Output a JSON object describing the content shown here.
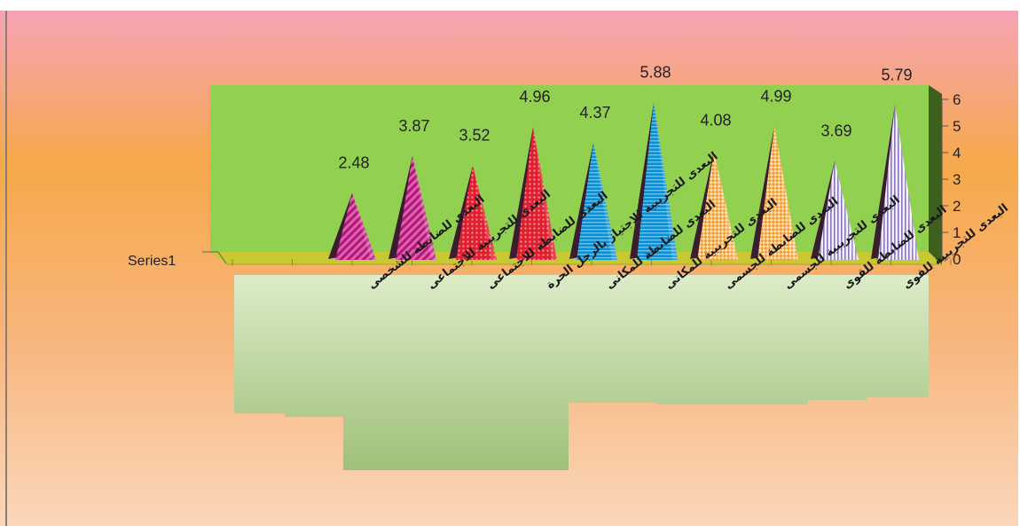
{
  "chart_data": {
    "type": "bar",
    "shape": "pyramid-3d",
    "categories": [
      "البعدى للضابطة للشخصى",
      "البعدى للتجريبية للاجتماعى",
      "البعدى للضابطة للاجتماعى",
      "البعدى للتجريبية للاجتياز بالرجل الحرة",
      "البعدى للضابطة للمكانى",
      "البعدى للتجريبية للمكانى",
      "البعدى للضابطة للجسمى",
      "البعدى للتجريبية للجسمى",
      "البعدى للضابطة للقوى",
      "البعدى للتجريبية للقوى"
    ],
    "series": [
      {
        "name": "Series1",
        "values": [
          2.48,
          3.87,
          3.52,
          4.96,
          4.37,
          5.88,
          4.08,
          4.99,
          3.69,
          5.79
        ]
      }
    ],
    "data_labels": [
      "2.48",
      "3.87",
      "3.52",
      "4.96",
      "4.37",
      "5.88",
      "4.08",
      "4.99",
      "3.69",
      "5.79"
    ],
    "yticks": [
      "0",
      "1",
      "2",
      "3",
      "4",
      "5",
      "6"
    ],
    "ylim": [
      0,
      6
    ],
    "grid": false,
    "legend": "none",
    "colors": {
      "wall": "#92d050",
      "wall_side": "#3f5f1f",
      "floor": "#c8c832",
      "label_panel": "#c3dcaa",
      "bg_top": "#f7a3b6",
      "bg_mid": "#f6a94a",
      "bg_bottom": "#fbd4b6",
      "magenta": "#c0288a",
      "red": "#e8283c",
      "blue": "#1aa0e0",
      "orange": "#f4a040",
      "lavender": "#b8a8d8"
    },
    "pyramid_colors": [
      "magenta",
      "magenta",
      "red",
      "red",
      "blue",
      "blue",
      "orange",
      "orange",
      "lavender",
      "lavender"
    ]
  }
}
